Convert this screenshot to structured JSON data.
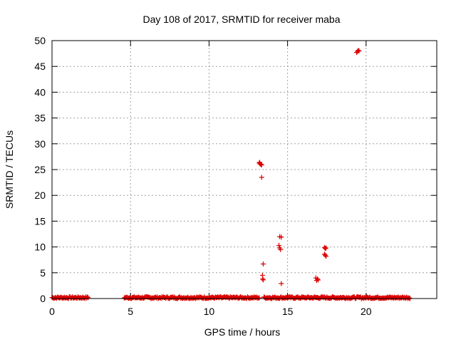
{
  "chart_data": {
    "type": "scatter",
    "title": "Day 108 of 2017, SRMTID for receiver maba",
    "xlabel": "GPS time / hours",
    "ylabel": "SRMTID / TECUs",
    "xlim": [
      0,
      24.5
    ],
    "ylim": [
      0,
      50
    ],
    "xticks": [
      0,
      5,
      10,
      15,
      20
    ],
    "yticks": [
      0,
      5,
      10,
      15,
      20,
      25,
      30,
      35,
      40,
      45,
      50
    ],
    "xtick_labels": [
      "0",
      "5",
      "10",
      "15",
      "20"
    ],
    "ytick_labels": [
      "0",
      "5",
      "10",
      "15",
      "20",
      "25",
      "30",
      "35",
      "40",
      "45",
      "50"
    ],
    "grid": true,
    "marker": "+",
    "color": "#dd0000",
    "baseline_segments": [
      [
        0.0,
        2.3
      ],
      [
        4.6,
        13.2
      ],
      [
        13.5,
        22.8
      ]
    ],
    "baseline_step": 0.05,
    "baseline_range": [
      0.0,
      0.35
    ],
    "points": [
      [
        13.2,
        26.3
      ],
      [
        13.25,
        26.1
      ],
      [
        13.3,
        26.0
      ],
      [
        13.22,
        26.4
      ],
      [
        13.35,
        25.9
      ],
      [
        13.35,
        23.5
      ],
      [
        13.45,
        6.7
      ],
      [
        13.4,
        4.5
      ],
      [
        13.42,
        3.8
      ],
      [
        13.45,
        3.6
      ],
      [
        14.45,
        10.3
      ],
      [
        14.5,
        9.8
      ],
      [
        14.55,
        9.5
      ],
      [
        14.5,
        12.0
      ],
      [
        14.6,
        11.9
      ],
      [
        14.6,
        2.9
      ],
      [
        16.8,
        4.0
      ],
      [
        16.85,
        3.5
      ],
      [
        16.9,
        3.8
      ],
      [
        16.95,
        3.6
      ],
      [
        17.35,
        9.9
      ],
      [
        17.4,
        9.7
      ],
      [
        17.45,
        9.8
      ],
      [
        17.35,
        8.6
      ],
      [
        17.4,
        8.4
      ],
      [
        17.45,
        8.2
      ],
      [
        19.4,
        47.7
      ],
      [
        19.45,
        47.9
      ],
      [
        19.5,
        48.1
      ],
      [
        19.55,
        48.0
      ]
    ]
  }
}
